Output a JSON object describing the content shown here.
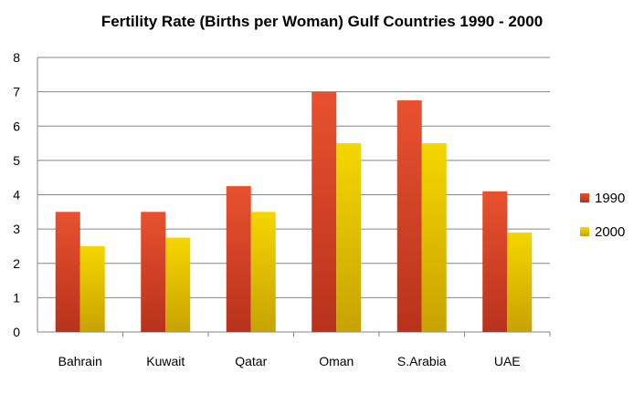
{
  "chart_data": {
    "type": "bar",
    "title": "Fertility Rate (Births per Woman) Gulf Countries 1990  - 2000",
    "xlabel": "",
    "ylabel": "",
    "categories": [
      "Bahrain",
      "Kuwait",
      "Qatar",
      "Oman",
      "S.Arabia",
      "UAE"
    ],
    "ylim": [
      0,
      8
    ],
    "yticks": [
      "0",
      "1",
      "2",
      "3",
      "4",
      "5",
      "6",
      "7",
      "8"
    ],
    "grid": true,
    "legend_position": "right",
    "series": [
      {
        "name": "1990",
        "values": [
          3.5,
          3.5,
          4.25,
          7.0,
          6.75,
          4.1
        ],
        "color": "#d9472b"
      },
      {
        "name": "2000",
        "values": [
          2.5,
          2.75,
          3.5,
          5.5,
          5.5,
          2.9
        ],
        "color": "#e6c000"
      }
    ]
  }
}
